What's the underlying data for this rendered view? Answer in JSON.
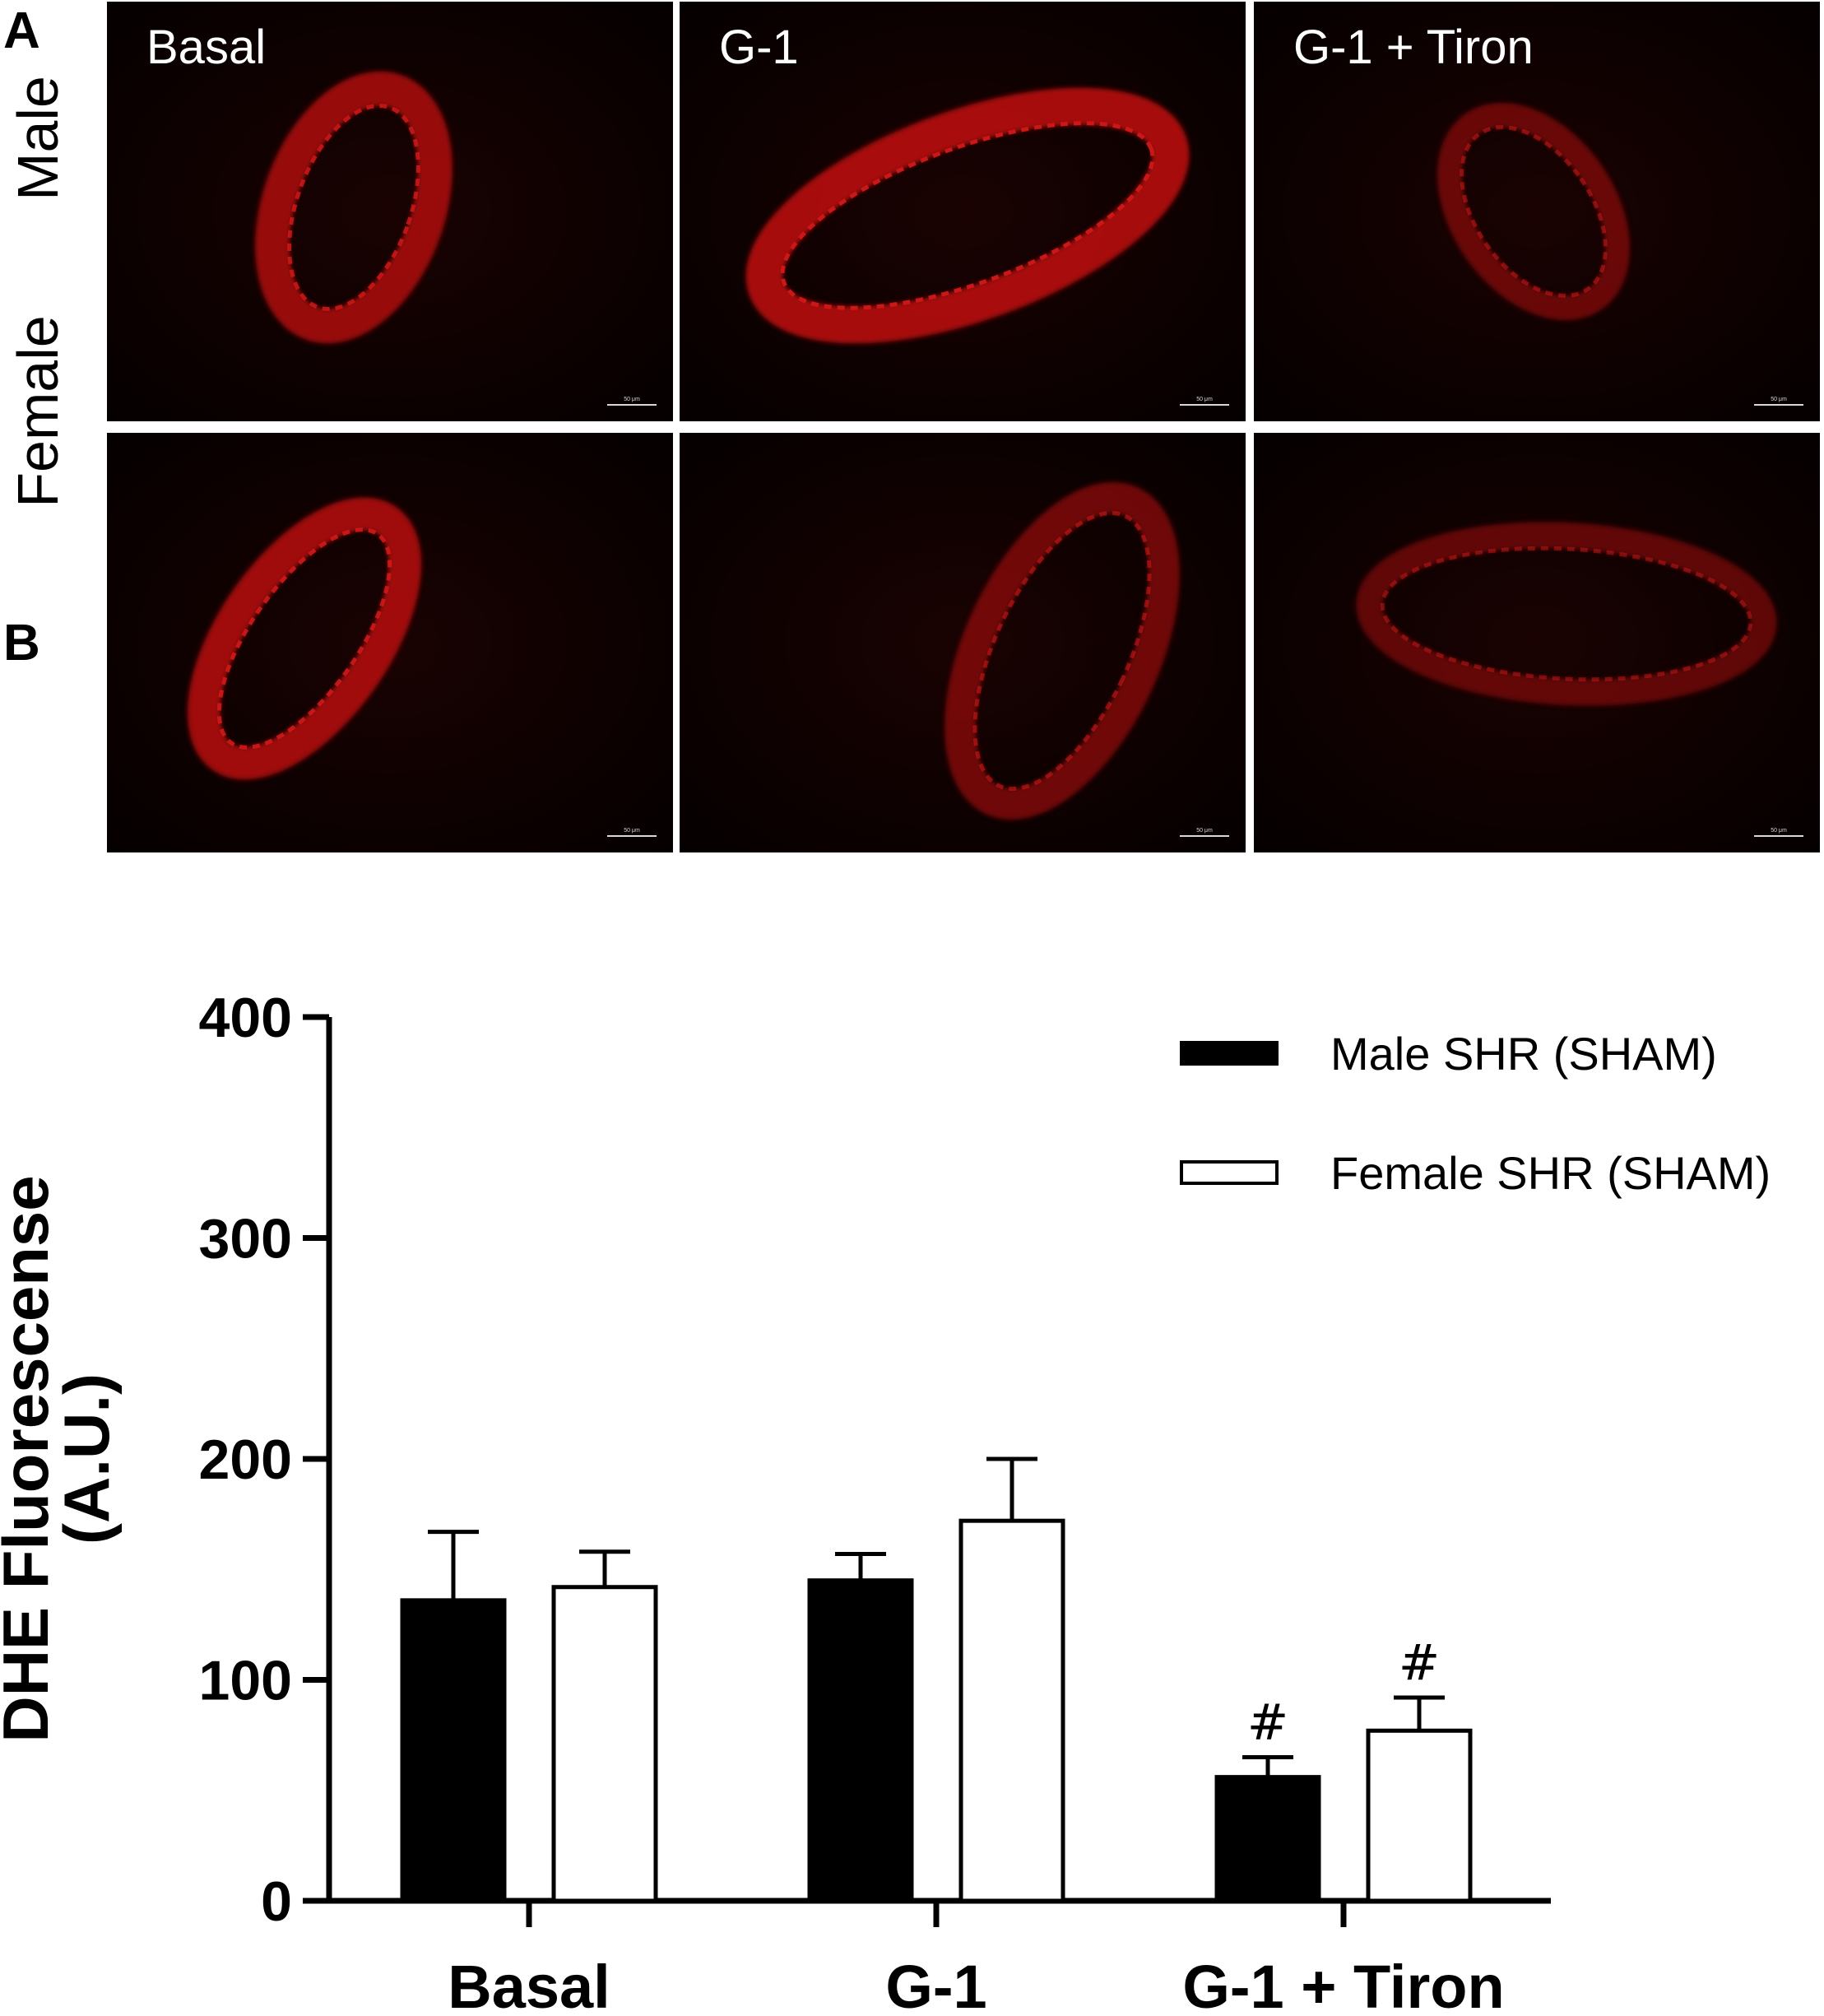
{
  "panel_a": {
    "letter": "A",
    "columns": [
      "Basal",
      "G-1",
      "G-1 + Tiron"
    ],
    "rows": [
      "Male",
      "Female"
    ],
    "scale_bar_label": "50 μm",
    "image_color": "#b01010"
  },
  "panel_b": {
    "letter": "B"
  },
  "chart_data": {
    "type": "bar",
    "title": "",
    "ylabel": "DHE Fluorescense\n(A.U.)",
    "xlabel": "",
    "categories": [
      "Basal",
      "G-1",
      "G-1 + Tiron"
    ],
    "ylim": [
      0,
      400
    ],
    "yticks": [
      0,
      100,
      200,
      300,
      400
    ],
    "series": [
      {
        "name": "Male SHR (SHAM)",
        "fill": "#000000",
        "values": [
          136,
          145,
          56
        ],
        "error": [
          31,
          12,
          9
        ]
      },
      {
        "name": "Female SHR (SHAM)",
        "fill": "#ffffff",
        "values": [
          142,
          172,
          77
        ],
        "error": [
          16,
          28,
          15
        ]
      }
    ],
    "annotations": [
      {
        "category": "G-1 + Tiron",
        "series": "Male SHR (SHAM)",
        "text": "#"
      },
      {
        "category": "G-1 + Tiron",
        "series": "Female SHR (SHAM)",
        "text": "#"
      }
    ],
    "legend_position": "top-right",
    "grid": false
  }
}
